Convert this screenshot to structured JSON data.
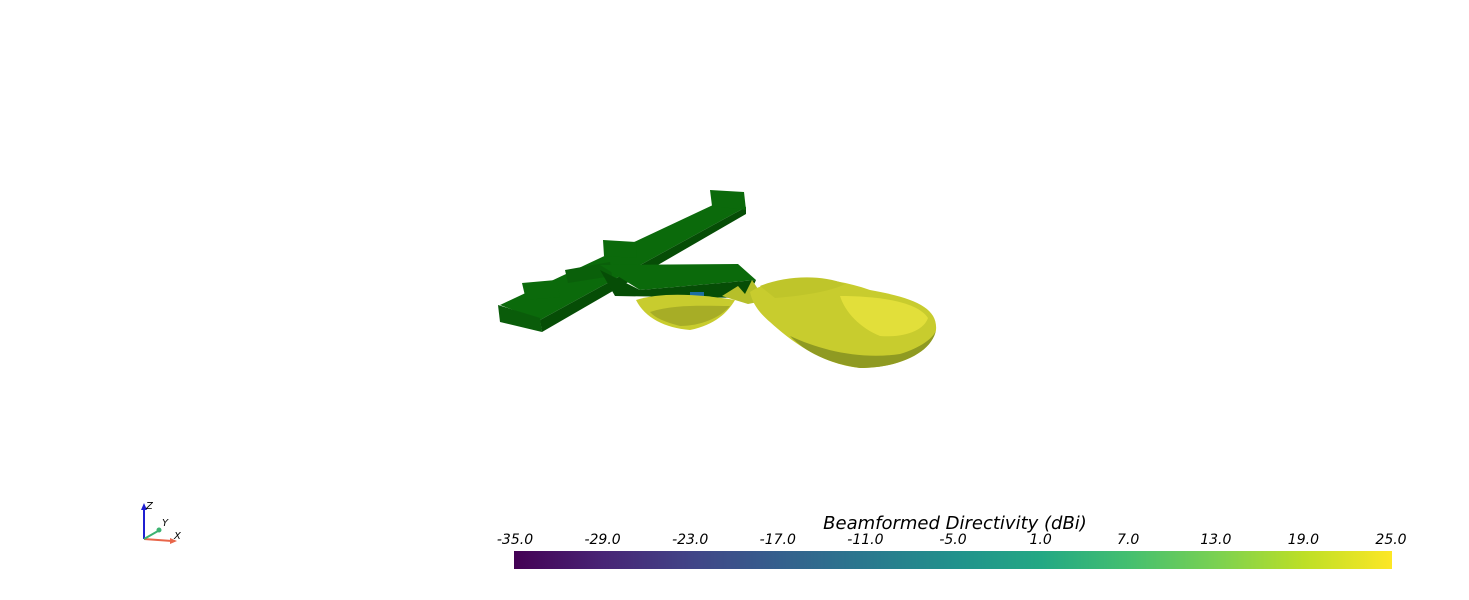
{
  "colors": {
    "model_green": "#0b6a0b",
    "model_green_dark": "#064d06",
    "beam_yellow": "#c8cc2e",
    "beam_yellow_light": "#e2df3a",
    "beam_olive": "#8f9a22",
    "axis_x": "#e8664a",
    "axis_y": "#3cb371",
    "axis_z": "#1f1fd1"
  },
  "axes_widget": {
    "x_label": "X",
    "y_label": "Y",
    "z_label": "Z"
  },
  "colorbar": {
    "title": "Beamformed Directivity (dBi)",
    "colormap": "viridis",
    "range": [
      -35.0,
      25.0
    ],
    "ticks": [
      "-35.0",
      "-29.0",
      "-23.0",
      "-17.0",
      "-11.0",
      "-5.0",
      "1.0",
      "7.0",
      "13.0",
      "19.0",
      "25.0"
    ]
  }
}
